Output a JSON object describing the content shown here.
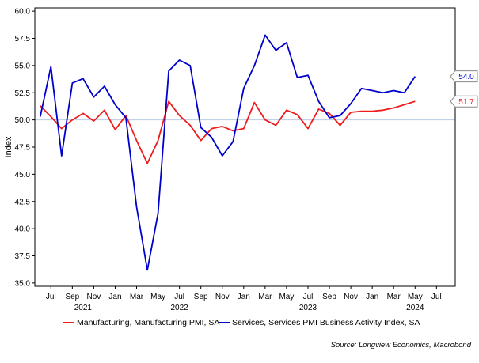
{
  "chart_data": {
    "type": "line",
    "title": "",
    "xlabel": "",
    "ylabel": "Index",
    "ylim": [
      35.0,
      60.0
    ],
    "y_ticks": [
      "35.0",
      "37.5",
      "40.0",
      "42.5",
      "45.0",
      "47.5",
      "50.0",
      "52.5",
      "55.0",
      "57.5",
      "60.0"
    ],
    "x_tick_months": [
      "Jul",
      "Sep",
      "Nov",
      "Jan",
      "Mar",
      "May",
      "Jul",
      "Sep",
      "Nov",
      "Jan",
      "Mar",
      "May",
      "Jul",
      "Sep",
      "Nov",
      "Jan",
      "Mar",
      "May",
      "Jul"
    ],
    "x_tick_dates": [
      "2021-07",
      "2021-09",
      "2021-11",
      "2022-01",
      "2022-03",
      "2022-05",
      "2022-07",
      "2022-09",
      "2022-11",
      "2023-01",
      "2023-03",
      "2023-05",
      "2023-07",
      "2023-09",
      "2023-11",
      "2024-01",
      "2024-03",
      "2024-05",
      "2024-07"
    ],
    "x_year_labels": [
      {
        "label": "2021",
        "date": "2021-10"
      },
      {
        "label": "2022",
        "date": "2022-07"
      },
      {
        "label": "2023",
        "date": "2023-07"
      },
      {
        "label": "2024",
        "date": "2024-05"
      }
    ],
    "x": [
      "2021-06",
      "2021-07",
      "2021-08",
      "2021-09",
      "2021-10",
      "2021-11",
      "2021-12",
      "2022-01",
      "2022-02",
      "2022-03",
      "2022-04",
      "2022-05",
      "2022-06",
      "2022-07",
      "2022-08",
      "2022-09",
      "2022-10",
      "2022-11",
      "2022-12",
      "2023-01",
      "2023-02",
      "2023-03",
      "2023-04",
      "2023-05",
      "2023-06",
      "2023-07",
      "2023-08",
      "2023-09",
      "2023-10",
      "2023-11",
      "2023-12",
      "2024-01",
      "2024-02",
      "2024-03",
      "2024-04",
      "2024-05"
    ],
    "reference_line": 50.0,
    "series": [
      {
        "name": "Manufacturing, Manufacturing PMI, SA",
        "color": "#ee1c1c",
        "values": [
          51.3,
          50.3,
          49.2,
          50.0,
          50.6,
          49.9,
          50.9,
          49.1,
          50.4,
          48.1,
          46.0,
          48.1,
          51.7,
          50.4,
          49.5,
          48.1,
          49.2,
          49.4,
          49.0,
          49.2,
          51.6,
          50.0,
          49.5,
          50.9,
          50.5,
          49.2,
          51.0,
          50.6,
          49.5,
          50.7,
          50.8,
          50.8,
          50.9,
          51.1,
          51.4,
          51.7
        ],
        "end_label": "51.7"
      },
      {
        "name": "Services, Services PMI Business Activity Index, SA",
        "color": "#0000cc",
        "values": [
          50.3,
          54.9,
          46.7,
          53.4,
          53.8,
          52.1,
          53.1,
          51.4,
          50.2,
          42.0,
          36.2,
          41.4,
          54.5,
          55.5,
          55.0,
          49.3,
          48.4,
          46.7,
          48.0,
          52.9,
          55.0,
          57.8,
          56.4,
          57.1,
          53.9,
          54.1,
          51.7,
          50.2,
          50.4,
          51.5,
          52.9,
          52.7,
          52.5,
          52.7,
          52.5,
          54.0
        ],
        "end_label": "54.0"
      }
    ],
    "legend_position": "bottom",
    "grid": false,
    "source": "Source: Longview Economics, Macrobond"
  }
}
